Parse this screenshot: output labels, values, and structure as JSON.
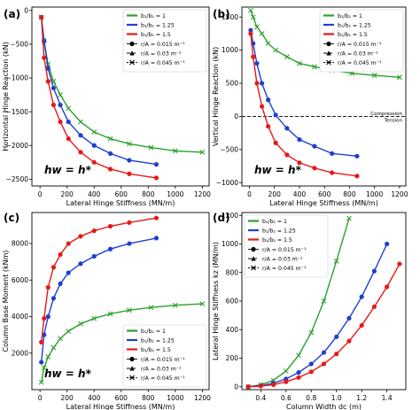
{
  "colors": {
    "green": "#2ca02c",
    "blue": "#1f3fd1",
    "red": "#e81818",
    "axis": "#000000"
  },
  "legend_common": {
    "ratio_labels": [
      "b₁/b₂ = 1",
      "b₁/b₂ = 1.25",
      "b₁/b₂ = 1.5"
    ],
    "rA_labels": [
      "r/A = 0.015 m⁻¹",
      "r/A = 0.03 m⁻¹",
      "r/A = 0.045 m⁻¹"
    ]
  },
  "chart_data": [
    {
      "type": "line",
      "panel": "(a)",
      "xlabel": "Lateral Hinge Stiffness (MN/m)",
      "ylabel": "Horizontal Hinge Reaction (kN)",
      "xlim": [
        -60,
        1250
      ],
      "ylim": [
        -2600,
        50
      ],
      "xticks": [
        0,
        200,
        400,
        600,
        800,
        1000,
        1200
      ],
      "yticks": [
        0,
        -500,
        -1000,
        -1500,
        -2000,
        -2500
      ],
      "ytick_labels": [
        "0",
        "−500",
        "−1000",
        "−1500",
        "−2000",
        "−2500"
      ],
      "annotation": "hw = h*",
      "legend_position": "top-right",
      "series": [
        {
          "color": "green",
          "style": "solid",
          "marker": "x",
          "x": [
            10,
            30,
            60,
            100,
            150,
            210,
            300,
            400,
            520,
            660,
            820,
            1000,
            1200
          ],
          "y": [
            -100,
            -450,
            -800,
            -1050,
            -1250,
            -1450,
            -1650,
            -1800,
            -1900,
            -1975,
            -2030,
            -2080,
            -2100
          ]
        },
        {
          "color": "blue",
          "style": "solid",
          "marker": "o",
          "x": [
            10,
            30,
            60,
            100,
            150,
            210,
            300,
            400,
            520,
            660,
            860
          ],
          "y": [
            -100,
            -450,
            -860,
            -1150,
            -1400,
            -1650,
            -1850,
            -2000,
            -2120,
            -2220,
            -2280
          ]
        },
        {
          "color": "red",
          "style": "solid",
          "marker": "o",
          "x": [
            10,
            30,
            60,
            100,
            150,
            210,
            300,
            400,
            520,
            660,
            860
          ],
          "y": [
            -100,
            -700,
            -1050,
            -1400,
            -1650,
            -1900,
            -2100,
            -2250,
            -2350,
            -2420,
            -2480
          ]
        }
      ]
    },
    {
      "type": "line",
      "panel": "(b)",
      "xlabel": "Lateral Hinge Stiffness (MN/m)",
      "ylabel": "Vertical Hinge Reaction (kN)",
      "xlim": [
        -60,
        1250
      ],
      "ylim": [
        -1050,
        1650
      ],
      "xticks": [
        0,
        200,
        400,
        600,
        800,
        1000,
        1200
      ],
      "yticks": [
        1500,
        1000,
        500,
        0,
        -500,
        -1000
      ],
      "ytick_labels": [
        "1500",
        "1000",
        "500",
        "0",
        "−500",
        "−1000"
      ],
      "annotation": "hw = h*",
      "hline_labels": [
        "Compression",
        "Tension"
      ],
      "legend_position": "top-right",
      "series": [
        {
          "color": "green",
          "style": "solid",
          "marker": "x",
          "x": [
            10,
            30,
            60,
            100,
            150,
            210,
            300,
            400,
            520,
            660,
            820,
            1000,
            1200
          ],
          "y": [
            1600,
            1500,
            1350,
            1250,
            1100,
            1000,
            900,
            800,
            750,
            700,
            650,
            620,
            590
          ]
        },
        {
          "color": "blue",
          "style": "solid",
          "marker": "o",
          "x": [
            10,
            30,
            60,
            100,
            150,
            210,
            300,
            400,
            520,
            660,
            860
          ],
          "y": [
            1300,
            1100,
            800,
            500,
            250,
            20,
            -180,
            -350,
            -450,
            -560,
            -600
          ]
        },
        {
          "color": "red",
          "style": "solid",
          "marker": "o",
          "x": [
            10,
            30,
            60,
            100,
            150,
            210,
            300,
            400,
            520,
            660,
            860
          ],
          "y": [
            1250,
            900,
            500,
            150,
            -150,
            -400,
            -580,
            -700,
            -780,
            -850,
            -900
          ]
        }
      ]
    },
    {
      "type": "line",
      "panel": "(c)",
      "xlabel": "Lateral Hinge Stiffness (MN/m)",
      "ylabel": "Column Base Moment (kNm)",
      "xlim": [
        -60,
        1250
      ],
      "ylim": [
        0,
        9700
      ],
      "xticks": [
        0,
        200,
        400,
        600,
        800,
        1000,
        1200
      ],
      "yticks": [
        2000,
        4000,
        6000,
        8000
      ],
      "ytick_labels": [
        "2000",
        "4000",
        "6000",
        "8000"
      ],
      "annotation": "hw = h*",
      "legend_position": "bottom-right",
      "series": [
        {
          "color": "green",
          "style": "solid",
          "marker": "x",
          "x": [
            10,
            30,
            60,
            100,
            150,
            210,
            300,
            400,
            520,
            660,
            820,
            1000,
            1200
          ],
          "y": [
            400,
            1200,
            1800,
            2300,
            2800,
            3200,
            3600,
            3900,
            4150,
            4350,
            4500,
            4620,
            4700
          ]
        },
        {
          "color": "blue",
          "style": "solid",
          "marker": "o",
          "x": [
            10,
            30,
            60,
            100,
            150,
            210,
            300,
            400,
            520,
            660,
            860
          ],
          "y": [
            1500,
            3000,
            4000,
            5000,
            5800,
            6400,
            6900,
            7300,
            7700,
            8000,
            8300
          ]
        },
        {
          "color": "red",
          "style": "solid",
          "marker": "o",
          "x": [
            10,
            30,
            60,
            100,
            150,
            210,
            300,
            400,
            520,
            660,
            860
          ],
          "y": [
            2600,
            3900,
            5600,
            6700,
            7400,
            8000,
            8400,
            8700,
            8950,
            9150,
            9400
          ]
        }
      ]
    },
    {
      "type": "line",
      "panel": "(d)",
      "xlabel": "Column Width dc (m)",
      "ylabel": "Lateral Hinge Stiffness kz (MN/m)",
      "xlim": [
        0.25,
        1.55
      ],
      "ylim": [
        -20,
        1220
      ],
      "xticks": [
        0.4,
        0.6,
        0.8,
        1.0,
        1.2,
        1.4
      ],
      "xtick_labels": [
        "0.4",
        "0.6",
        "0.8",
        "1.0",
        "1.2",
        "1.4"
      ],
      "yticks": [
        0,
        200,
        400,
        600,
        800,
        1000,
        1200
      ],
      "legend_position": "top-left",
      "series": [
        {
          "color": "green",
          "style": "solid",
          "marker": "x",
          "x": [
            0.3,
            0.4,
            0.5,
            0.6,
            0.7,
            0.8,
            0.9,
            1.0,
            1.1
          ],
          "y": [
            0,
            15,
            45,
            110,
            220,
            380,
            600,
            880,
            1180
          ]
        },
        {
          "color": "blue",
          "style": "solid",
          "marker": "o",
          "x": [
            0.3,
            0.4,
            0.5,
            0.6,
            0.7,
            0.8,
            0.9,
            1.0,
            1.1,
            1.2,
            1.3,
            1.4
          ],
          "y": [
            0,
            8,
            25,
            55,
            100,
            160,
            240,
            350,
            480,
            630,
            810,
            1000
          ]
        },
        {
          "color": "red",
          "style": "solid",
          "marker": "o",
          "x": [
            0.3,
            0.4,
            0.5,
            0.6,
            0.7,
            0.8,
            0.9,
            1.0,
            1.1,
            1.2,
            1.3,
            1.4,
            1.5
          ],
          "y": [
            0,
            5,
            15,
            35,
            65,
            105,
            160,
            230,
            320,
            430,
            560,
            700,
            860
          ]
        }
      ]
    }
  ]
}
